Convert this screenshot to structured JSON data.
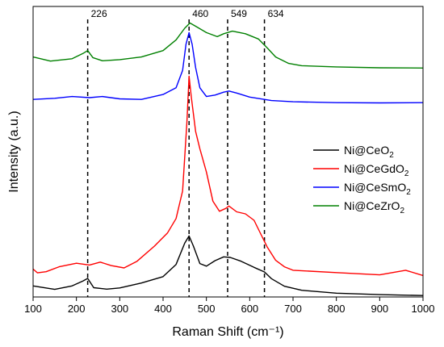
{
  "chart_data": {
    "type": "line",
    "xlabel": "Raman Shift (cm⁻¹)",
    "ylabel": "Intensity (a.u.)",
    "xlim": [
      100,
      1000
    ],
    "ylim": [
      0,
      100
    ],
    "x_ticks": [
      100,
      200,
      300,
      400,
      500,
      600,
      700,
      800,
      900,
      1000
    ],
    "y_ticks_shown": false,
    "grid": false,
    "legend_position": "right",
    "peaks": [
      {
        "x": 226,
        "label": "226"
      },
      {
        "x": 460,
        "label": "460"
      },
      {
        "x": 549,
        "label": "549"
      },
      {
        "x": 634,
        "label": "634"
      }
    ],
    "series": [
      {
        "name": "Ni@CeO₂",
        "name_base": "Ni@CeO",
        "name_sub": "2",
        "color": "#000000",
        "points": [
          [
            100,
            3.8
          ],
          [
            150,
            2.6
          ],
          [
            190,
            3.8
          ],
          [
            215,
            5.5
          ],
          [
            226,
            6.4
          ],
          [
            240,
            3.2
          ],
          [
            270,
            2.7
          ],
          [
            300,
            3.1
          ],
          [
            350,
            4.8
          ],
          [
            400,
            7.0
          ],
          [
            430,
            11.2
          ],
          [
            450,
            18.5
          ],
          [
            460,
            21.0
          ],
          [
            470,
            17.5
          ],
          [
            485,
            11.5
          ],
          [
            500,
            10.6
          ],
          [
            520,
            12.5
          ],
          [
            540,
            13.8
          ],
          [
            555,
            13.6
          ],
          [
            580,
            12.3
          ],
          [
            610,
            10.2
          ],
          [
            634,
            8.6
          ],
          [
            650,
            6.3
          ],
          [
            680,
            3.7
          ],
          [
            720,
            2.3
          ],
          [
            800,
            1.3
          ],
          [
            900,
            0.8
          ],
          [
            1000,
            0.5
          ]
        ]
      },
      {
        "name": "Ni@CeGdO₂",
        "name_base": "Ni@CeGdO",
        "name_sub": "2",
        "color": "#ff0000",
        "points": [
          [
            100,
            9.6
          ],
          [
            110,
            8.3
          ],
          [
            130,
            8.7
          ],
          [
            160,
            10.4
          ],
          [
            200,
            11.6
          ],
          [
            230,
            11.0
          ],
          [
            255,
            12.0
          ],
          [
            280,
            10.8
          ],
          [
            310,
            10.0
          ],
          [
            340,
            12.3
          ],
          [
            380,
            17.5
          ],
          [
            410,
            22.0
          ],
          [
            430,
            27.0
          ],
          [
            445,
            36.5
          ],
          [
            455,
            60.0
          ],
          [
            460,
            76.0
          ],
          [
            465,
            69.0
          ],
          [
            475,
            57.0
          ],
          [
            485,
            51.0
          ],
          [
            500,
            43.0
          ],
          [
            515,
            33.0
          ],
          [
            530,
            29.5
          ],
          [
            545,
            30.5
          ],
          [
            552,
            31.3
          ],
          [
            570,
            29.3
          ],
          [
            590,
            28.6
          ],
          [
            610,
            26.4
          ],
          [
            625,
            21.8
          ],
          [
            640,
            17.3
          ],
          [
            660,
            12.6
          ],
          [
            680,
            10.4
          ],
          [
            700,
            9.2
          ],
          [
            800,
            8.4
          ],
          [
            900,
            7.6
          ],
          [
            960,
            9.2
          ],
          [
            1000,
            7.4
          ]
        ]
      },
      {
        "name": "Ni@CeSmO₂",
        "name_base": "Ni@CeSmO",
        "name_sub": "2",
        "color": "#0000ff",
        "points": [
          [
            100,
            68.0
          ],
          [
            150,
            68.4
          ],
          [
            190,
            69.0
          ],
          [
            230,
            68.6
          ],
          [
            260,
            69.0
          ],
          [
            300,
            68.2
          ],
          [
            350,
            68.0
          ],
          [
            400,
            69.7
          ],
          [
            430,
            72.0
          ],
          [
            445,
            78.0
          ],
          [
            453,
            87.0
          ],
          [
            460,
            91.0
          ],
          [
            467,
            87.0
          ],
          [
            475,
            79.0
          ],
          [
            485,
            72.0
          ],
          [
            500,
            69.0
          ],
          [
            520,
            69.5
          ],
          [
            540,
            70.5
          ],
          [
            552,
            70.9
          ],
          [
            570,
            70.2
          ],
          [
            600,
            68.8
          ],
          [
            650,
            67.6
          ],
          [
            700,
            67.2
          ],
          [
            800,
            66.9
          ],
          [
            900,
            66.8
          ],
          [
            1000,
            66.9
          ]
        ]
      },
      {
        "name": "Ni@CeZrO₂",
        "name_base": "Ni@CeZrO",
        "name_sub": "2",
        "color": "#008000",
        "points": [
          [
            100,
            82.6
          ],
          [
            140,
            81.2
          ],
          [
            190,
            82.0
          ],
          [
            215,
            83.8
          ],
          [
            226,
            84.8
          ],
          [
            238,
            82.4
          ],
          [
            260,
            81.3
          ],
          [
            300,
            81.7
          ],
          [
            350,
            82.6
          ],
          [
            400,
            84.8
          ],
          [
            430,
            88.5
          ],
          [
            450,
            92.5
          ],
          [
            462,
            94.3
          ],
          [
            475,
            93.2
          ],
          [
            500,
            91.0
          ],
          [
            525,
            89.6
          ],
          [
            540,
            90.6
          ],
          [
            560,
            91.5
          ],
          [
            590,
            90.6
          ],
          [
            620,
            88.8
          ],
          [
            640,
            85.8
          ],
          [
            660,
            82.6
          ],
          [
            690,
            80.4
          ],
          [
            720,
            79.6
          ],
          [
            800,
            79.2
          ],
          [
            900,
            78.9
          ],
          [
            1000,
            78.8
          ]
        ]
      }
    ],
    "legend_order": [
      0,
      1,
      2,
      3
    ]
  }
}
